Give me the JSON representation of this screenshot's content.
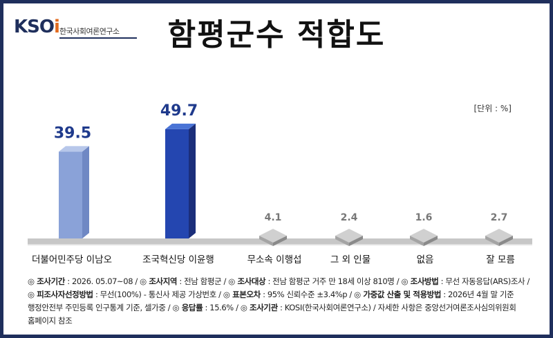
{
  "logo": {
    "mark_main": "KSO",
    "mark_accent": "i",
    "subtitle": "한국사회여론연구소"
  },
  "title": "함평군수 적합도",
  "unit_label": "[단위 : %]",
  "chart_data": {
    "type": "bar",
    "title": "함평군수 적합도",
    "categories": [
      "더불어민주당 이남오",
      "조국혁신당 이윤행",
      "무소속 이행섭",
      "그 외 인물",
      "없음",
      "잘 모름"
    ],
    "values": [
      39.5,
      49.7,
      4.1,
      2.4,
      1.6,
      2.7
    ],
    "value_labels": [
      "39.5",
      "49.7",
      "4.1",
      "2.4",
      "1.6",
      "2.7"
    ],
    "unit": "%",
    "ylim": [
      0,
      55
    ],
    "colors": {
      "bar1_front": "#8aa2d8",
      "bar1_side": "#6f88c4",
      "bar1_top": "#b7c7ea",
      "bar2_front": "#2446b0",
      "bar2_side": "#1b2e7a",
      "bar2_top": "#4a74d6",
      "grey_front": "#a4a4a4",
      "grey_side": "#8a8a8a",
      "grey_top": "#d0d0d0",
      "label_highlight": "#1f3a8c",
      "label_grey": "#777777"
    }
  },
  "footer": {
    "items": [
      {
        "key": "◎ 조사기간",
        "val": " : 2026. 05.07~08 / "
      },
      {
        "key": "◎ 조사지역",
        "val": " :  전남 함평군 / "
      },
      {
        "key": "◎ 조사대상",
        "val": " : 전남 함평군 거주 만 18세 이상 810명 / "
      },
      {
        "key": "◎ 조사방법",
        "val": " : 무선 자동응답(ARS)조사 /"
      },
      {
        "key": "◎ 피조사자선정방법",
        "val": " : 무선(100%) - 통신사 제공 가상번호 / "
      },
      {
        "key": "◎ 표본오차",
        "val": " : 95% 신뢰수준 ±3.4%p / "
      },
      {
        "key": "◎ 가중값 산출 및 적용방법",
        "val": " : 2026년 4월 말 기준"
      },
      {
        "key": "",
        "val": "행정안전부 주민등록 인구통계 기준, 셀가중 / "
      },
      {
        "key": "◎ 응답률",
        "val": " : 15.6% / "
      },
      {
        "key": "◎ 조사기관",
        "val": " : KOSI(한국사회여론연구소) / 자세한 사항은 중앙선거여론조사심의위원회"
      },
      {
        "key": "",
        "val": "홈페이지 참조"
      }
    ]
  }
}
